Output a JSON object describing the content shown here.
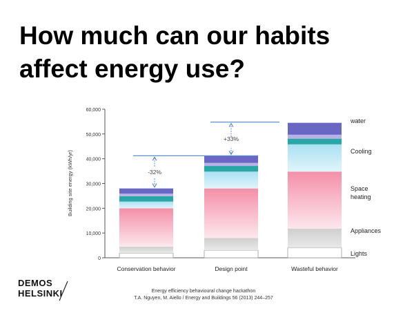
{
  "slide": {
    "title_line1": "How much can our habits",
    "title_line2": "affect energy use?"
  },
  "chart_data": {
    "type": "bar",
    "stacked": true,
    "categories": [
      "Conservation behavior",
      "Design point",
      "Wasteful behavior"
    ],
    "ylabel": "Building site energy (kWh/yr)",
    "xlabel": "",
    "ylim": [
      0,
      60000
    ],
    "yticks": [
      "0",
      "10,000",
      "20,000",
      "30,000",
      "40,000",
      "50,000",
      "60,000"
    ],
    "grid": false,
    "legend_placement": "right",
    "series": [
      {
        "name": "Lights",
        "color": "#ffffff",
        "values": [
          1800,
          3000,
          4000
        ]
      },
      {
        "name": "Appliances",
        "color": "#d6d6d6",
        "values": [
          2700,
          5000,
          7800
        ]
      },
      {
        "name": "Space heating",
        "color": "#f6a9bd",
        "values": [
          15500,
          20000,
          23000
        ]
      },
      {
        "name": "Cooling",
        "color": "#bfe9f5",
        "values": [
          2700,
          6800,
          11000
        ]
      },
      {
        "name": "",
        "color": "#2aa6a6",
        "values": [
          2200,
          2300,
          2300
        ]
      },
      {
        "name": "",
        "color": "#b7b3e8",
        "values": [
          1000,
          1200,
          1600
        ]
      },
      {
        "name": "water",
        "color": "#6a66c4",
        "values": [
          2100,
          3000,
          4800
        ]
      }
    ],
    "annotations": [
      {
        "text": "-32%",
        "category": 0,
        "from": 41200,
        "to": 28000
      },
      {
        "text": "+33%",
        "category": 1,
        "from": 41200,
        "to": 54800
      }
    ],
    "reference_lines": [
      41200,
      54800
    ]
  },
  "branding": {
    "line1": "DEMOS",
    "line2": "HELSINKI"
  },
  "footer": {
    "line1": "Energy efficiency behavioural change hackathon",
    "line2": "T.A. Nguyen, M. Aiello / Energy and Buildings 56 (2013) 244–257"
  }
}
